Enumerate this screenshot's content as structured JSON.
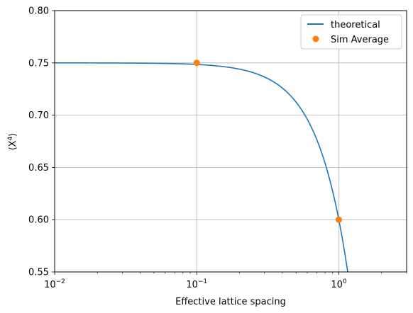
{
  "chart_data": {
    "type": "line",
    "xlabel": "Effective lattice spacing",
    "ylabel_base": "⟨X",
    "ylabel_sup": "4",
    "ylabel_end": "⟩",
    "xscale": "log",
    "xlim": [
      0.01,
      3.0
    ],
    "ylim": [
      0.55,
      0.8
    ],
    "grid": true,
    "legend_position": "top-right",
    "x_ticks": [
      {
        "value": 0.01,
        "base": "10",
        "exp": "−2"
      },
      {
        "value": 0.1,
        "base": "10",
        "exp": "−1"
      },
      {
        "value": 1.0,
        "base": "10",
        "exp": "0"
      }
    ],
    "y_ticks": [
      "0.55",
      "0.60",
      "0.65",
      "0.70",
      "0.75",
      "0.80"
    ],
    "series": [
      {
        "name": "theoretical",
        "kind": "line",
        "color": "#1f77b4",
        "formula": "0.75 - 0.15*a^2",
        "x": [
          0.01,
          0.02,
          0.05,
          0.1,
          0.2,
          0.3,
          0.4,
          0.5,
          0.6,
          0.7,
          0.8,
          0.9,
          1.0,
          1.1,
          1.2
        ],
        "y": [
          0.75,
          0.74994,
          0.74963,
          0.7485,
          0.744,
          0.7365,
          0.726,
          0.7125,
          0.696,
          0.6765,
          0.654,
          0.6285,
          0.6,
          0.5685,
          0.534
        ]
      },
      {
        "name": "Sim Average",
        "kind": "scatter",
        "color": "#ff7f0e",
        "x": [
          0.1,
          1.0
        ],
        "y": [
          0.75,
          0.6
        ]
      }
    ]
  }
}
